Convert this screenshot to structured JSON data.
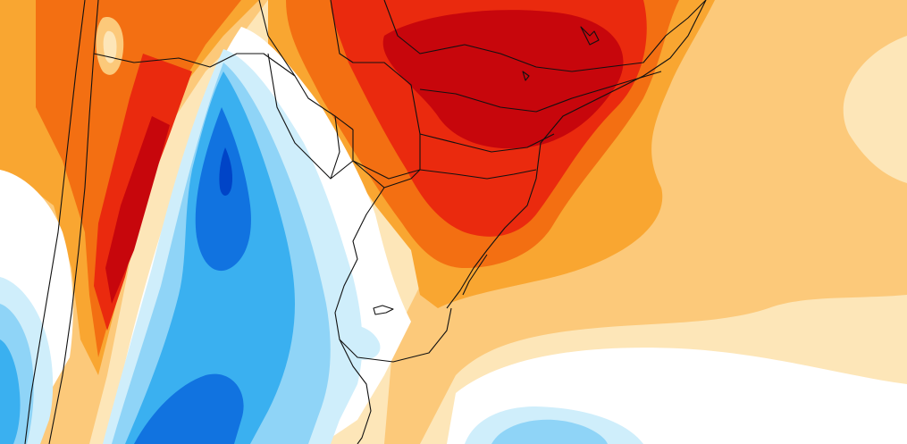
{
  "map": {
    "palette": {
      "warm_1": "#fde6b8",
      "warm_2": "#fcc97a",
      "warm_3": "#f9a631",
      "warm_4": "#f36f12",
      "warm_5": "#ea2a0e",
      "warm_6": "#c7060c",
      "cool_1": "#cfeefb",
      "cool_2": "#8fd4f7",
      "cool_3": "#3ab0f0",
      "cool_4": "#1173e0",
      "cool_5": "#0044c7",
      "neutral": "#ffffff",
      "borders": "#111111"
    }
  }
}
